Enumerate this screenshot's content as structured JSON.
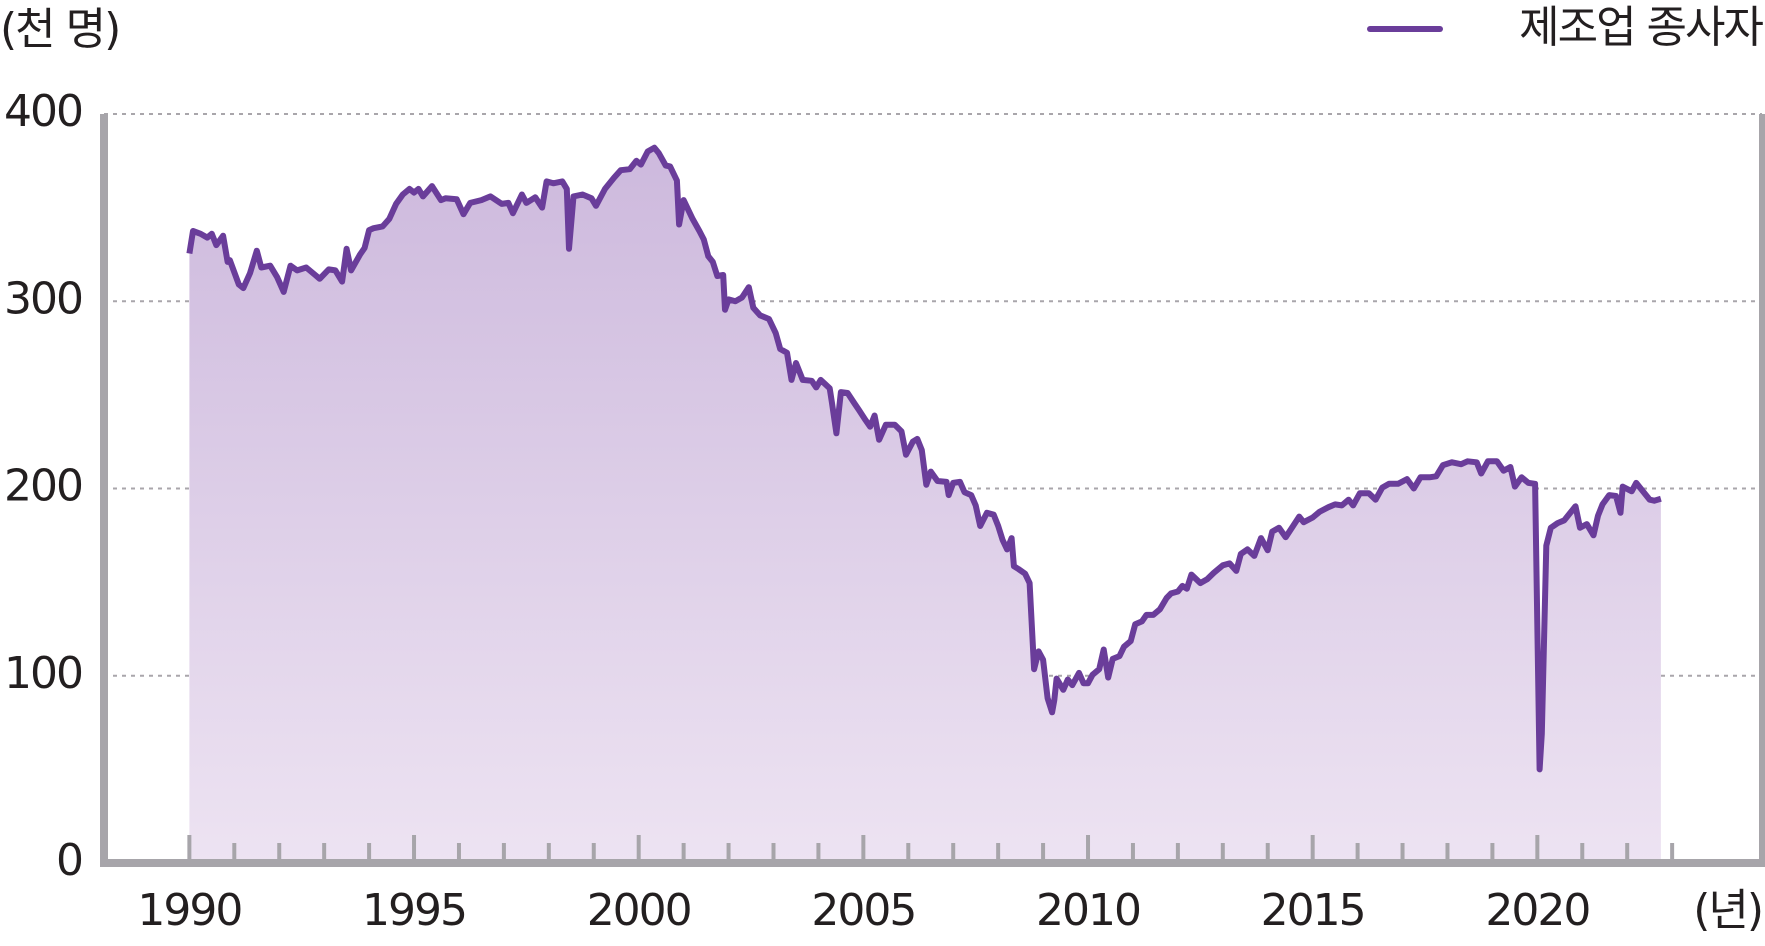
{
  "chart_data": {
    "type": "area-line",
    "y_unit_label": "(천 명)",
    "x_unit_label": "(년)",
    "series": [
      {
        "name": "제조업 종사자",
        "color": "#6a3d9a",
        "fill_top": "#cdb9dd",
        "fill_bottom": "#ede3f2",
        "x": [
          1990.0,
          1990.08,
          1990.25,
          1990.4,
          1990.5,
          1990.6,
          1990.75,
          1990.85,
          1990.9,
          1991.1,
          1991.2,
          1991.35,
          1991.5,
          1991.6,
          1991.8,
          1991.95,
          1992.1,
          1992.25,
          1992.4,
          1992.6,
          1992.8,
          1992.9,
          1993.1,
          1993.25,
          1993.4,
          1993.5,
          1993.6,
          1993.8,
          1993.9,
          1994.0,
          1994.1,
          1994.3,
          1994.45,
          1994.6,
          1994.75,
          1994.9,
          1995.0,
          1995.1,
          1995.2,
          1995.4,
          1995.6,
          1995.7,
          1995.95,
          1996.1,
          1996.25,
          1996.5,
          1996.7,
          1996.95,
          1997.1,
          1997.2,
          1997.4,
          1997.5,
          1997.7,
          1997.85,
          1997.95,
          1998.1,
          1998.3,
          1998.4,
          1998.45,
          1998.55,
          1998.75,
          1998.95,
          1999.05,
          1999.25,
          1999.45,
          1999.6,
          1999.8,
          1999.95,
          2000.05,
          2000.2,
          2000.35,
          2000.45,
          2000.6,
          2000.7,
          2000.85,
          2000.9,
          2001.0,
          2001.2,
          2001.35,
          2001.45,
          2001.55,
          2001.65,
          2001.75,
          2001.88,
          2001.92,
          2002.0,
          2002.15,
          2002.3,
          2002.45,
          2002.55,
          2002.7,
          2002.9,
          2003.05,
          2003.15,
          2003.3,
          2003.4,
          2003.5,
          2003.65,
          2003.85,
          2003.95,
          2004.05,
          2004.25,
          2004.3,
          2004.4,
          2004.5,
          2004.65,
          2004.8,
          2004.9,
          2005.05,
          2005.15,
          2005.25,
          2005.35,
          2005.5,
          2005.7,
          2005.85,
          2005.95,
          2006.1,
          2006.2,
          2006.3,
          2006.4,
          2006.5,
          2006.65,
          2006.85,
          2006.9,
          2007.0,
          2007.15,
          2007.25,
          2007.4,
          2007.5,
          2007.6,
          2007.75,
          2007.9,
          2008.0,
          2008.1,
          2008.2,
          2008.3,
          2008.35,
          2008.45,
          2008.6,
          2008.7,
          2008.8,
          2008.9,
          2009.0,
          2009.1,
          2009.2,
          2009.25,
          2009.3,
          2009.45,
          2009.55,
          2009.65,
          2009.8,
          2009.9,
          2010.0,
          2010.1,
          2010.25,
          2010.35,
          2010.45,
          2010.55,
          2010.7,
          2010.8,
          2010.95,
          2011.05,
          2011.2,
          2011.3,
          2011.45,
          2011.6,
          2011.75,
          2011.85,
          2012.0,
          2012.1,
          2012.2,
          2012.3,
          2012.5,
          2012.65,
          2012.8,
          2013.0,
          2013.15,
          2013.3,
          2013.4,
          2013.55,
          2013.7,
          2013.85,
          2014.0,
          2014.1,
          2014.25,
          2014.4,
          2014.55,
          2014.7,
          2014.8,
          2015.0,
          2015.15,
          2015.35,
          2015.5,
          2015.65,
          2015.8,
          2015.9,
          2016.05,
          2016.25,
          2016.4,
          2016.55,
          2016.7,
          2016.9,
          2017.1,
          2017.25,
          2017.4,
          2017.6,
          2017.75,
          2017.9,
          2018.1,
          2018.3,
          2018.45,
          2018.65,
          2018.75,
          2018.9,
          2019.1,
          2019.25,
          2019.4,
          2019.5,
          2019.65,
          2019.8,
          2019.95,
          2020.05,
          2020.1,
          2020.2,
          2020.3,
          2020.45,
          2020.6,
          2020.75,
          2020.85,
          2020.95,
          2021.1,
          2021.25,
          2021.35,
          2021.45,
          2021.6,
          2021.75,
          2021.85,
          2021.9,
          2022.1,
          2022.2,
          2022.35,
          2022.5,
          2022.6,
          2022.75
        ],
        "values": [
          325.5,
          337.5,
          336,
          334,
          336,
          330,
          335,
          321,
          322,
          309,
          307,
          315,
          327,
          318,
          319,
          313,
          305,
          319,
          316.5,
          318,
          314,
          312,
          317,
          316.5,
          310.5,
          328,
          316.5,
          325,
          328.5,
          338,
          339,
          340,
          344,
          352,
          357,
          360,
          358,
          360,
          356,
          361.5,
          354,
          355,
          354.5,
          346.5,
          352.5,
          354,
          356,
          352,
          352.5,
          347,
          357,
          352.5,
          355.5,
          350,
          364,
          363,
          364,
          360,
          328,
          356,
          357,
          355,
          351,
          360,
          366,
          370,
          370.5,
          375,
          373,
          380,
          382,
          379,
          372.5,
          372,
          364.5,
          341,
          354,
          344,
          337.5,
          333,
          324,
          321,
          313.5,
          314,
          295.5,
          301,
          300,
          302,
          307.5,
          296.5,
          292.5,
          290.5,
          283,
          274.5,
          272.5,
          258,
          267,
          258,
          257.5,
          254,
          258,
          253.5,
          246,
          229.5,
          251.5,
          251,
          245.5,
          242,
          236.5,
          233,
          239,
          226,
          234,
          234,
          230.5,
          218,
          225,
          226.5,
          220.5,
          202,
          209,
          204,
          203.5,
          196.5,
          203,
          203.5,
          198,
          196.5,
          191,
          180,
          187,
          186,
          180,
          172.5,
          167.5,
          173.5,
          158.5,
          157,
          154.5,
          149.5,
          103.5,
          113,
          108.5,
          88,
          80.5,
          87,
          98.5,
          92.5,
          98,
          95,
          101.5,
          96,
          96,
          100.5,
          103.5,
          114,
          99,
          109,
          110.5,
          115.5,
          118.5,
          127.5,
          129,
          132.5,
          132.5,
          135.5,
          141.5,
          144,
          145,
          148,
          146.5,
          154,
          149.5,
          151.5,
          155,
          159,
          160,
          156,
          165,
          167.5,
          164,
          173.5,
          167,
          177,
          179,
          174,
          179.5,
          185,
          182,
          184.5,
          187.5,
          190,
          191.5,
          191,
          194,
          191,
          197.5,
          197.5,
          194,
          200.5,
          202.5,
          202.5,
          205,
          200,
          206,
          206,
          206.5,
          212.5,
          214,
          213,
          214.5,
          214,
          208,
          214.5,
          214.5,
          209.5,
          211.5,
          201,
          206,
          203,
          202.5,
          50,
          69,
          169.5,
          179,
          181.5,
          183,
          187.5,
          190.5,
          179,
          181,
          175,
          185.5,
          191.5,
          196.5,
          196,
          187,
          201,
          198.5,
          203,
          198.5,
          194,
          193.5,
          194.5
        ]
      }
    ],
    "xlim": [
      1988.1,
      2025
    ],
    "xticks": [
      1990,
      1995,
      2000,
      2005,
      2010,
      2015,
      2020
    ],
    "xminorticks": [
      1990,
      1991,
      1992,
      1993,
      1994,
      1995,
      1996,
      1997,
      1998,
      1999,
      2000,
      2001,
      2002,
      2003,
      2004,
      2005,
      2006,
      2007,
      2008,
      2009,
      2010,
      2011,
      2012,
      2013,
      2014,
      2015,
      2016,
      2017,
      2018,
      2019,
      2020,
      2021,
      2022,
      2023
    ],
    "ylim": [
      0,
      400
    ],
    "yticks": [
      0,
      100,
      200,
      300,
      400
    ],
    "grid": true,
    "legend": "top-right"
  }
}
